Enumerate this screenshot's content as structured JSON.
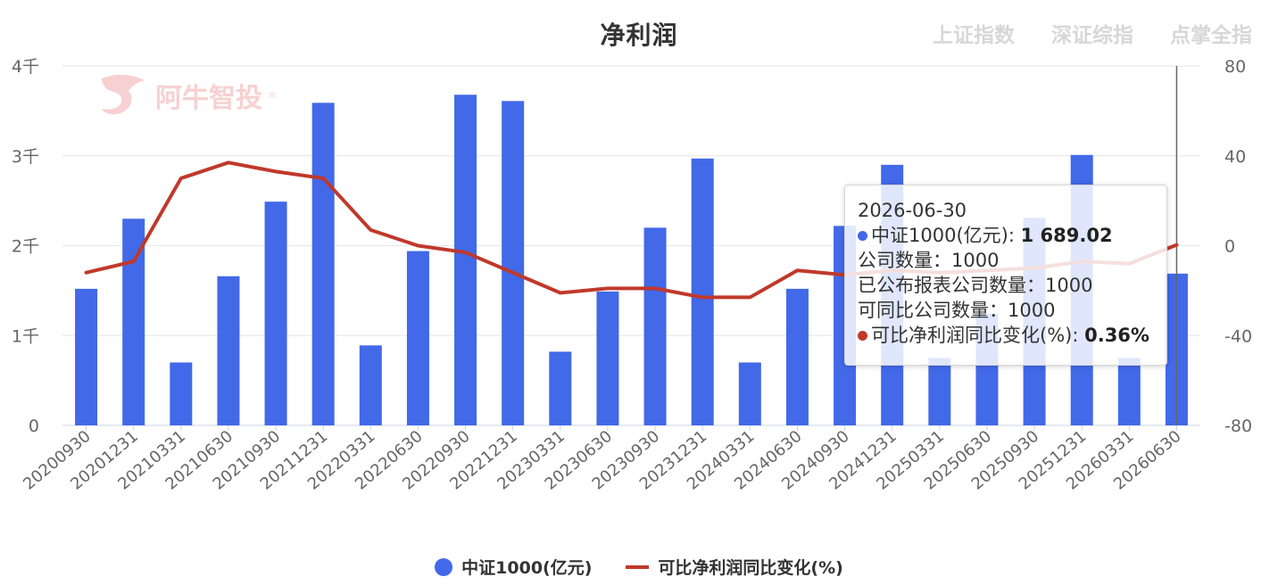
{
  "title": "净利润",
  "nav": [
    "上证指数",
    "深证综指",
    "点掌全指"
  ],
  "watermark": {
    "text": "阿牛智投",
    "mark": "®"
  },
  "colors": {
    "bar": "#4169e8",
    "line": "#c0392b",
    "grid": "#e6e6e6",
    "axis_text": "#666666"
  },
  "chart_data": {
    "type": "bar",
    "categories": [
      "20200930",
      "20201231",
      "20210331",
      "20210630",
      "20210930",
      "20211231",
      "20220331",
      "20220630",
      "20220930",
      "20221231",
      "20230331",
      "20230630",
      "20230930",
      "20231231",
      "20240331",
      "20240630",
      "20240930",
      "20241231",
      "20250331",
      "20250630",
      "20250930",
      "20251231",
      "20260331",
      "20260630"
    ],
    "series": [
      {
        "name": "中证1000(亿元)",
        "type": "bar",
        "axis": "left",
        "values": [
          1520,
          2300,
          700,
          1660,
          2490,
          3590,
          890,
          1940,
          3680,
          3610,
          820,
          1490,
          2200,
          2970,
          700,
          1520,
          2220,
          2900,
          750,
          1240,
          2310,
          3010,
          750,
          1689.02
        ]
      },
      {
        "name": "可比净利润同比变化(%)",
        "type": "line",
        "axis": "right",
        "values": [
          -12,
          -7,
          30,
          37,
          33,
          30,
          7,
          0,
          -3,
          -12,
          -21,
          -19,
          -19,
          -23,
          -23,
          -11,
          -13,
          -11,
          -12,
          -11,
          -10,
          -7,
          -8,
          0.36
        ]
      }
    ],
    "y_left": {
      "ticks": [
        "0",
        "1千",
        "2千",
        "3千",
        "4千"
      ],
      "ylim": [
        0,
        4000
      ]
    },
    "y_right": {
      "ticks": [
        "-80",
        "-40",
        "0",
        "40",
        "80"
      ],
      "ylim": [
        -80,
        80
      ]
    }
  },
  "tooltip": {
    "date": "2026-06-30",
    "series1_label": "中证1000(亿元):",
    "series1_value": "1 689.02",
    "company_count": "公司数量：1000",
    "published_count": "已公布报表公司数量：1000",
    "comparable_count": "可同比公司数量：1000",
    "series2_label": "可比净利润同比变化(%):",
    "series2_value": "0.36%"
  },
  "legend": {
    "bar_label": "中证1000(亿元)",
    "line_label": "可比净利润同比变化(%)"
  }
}
